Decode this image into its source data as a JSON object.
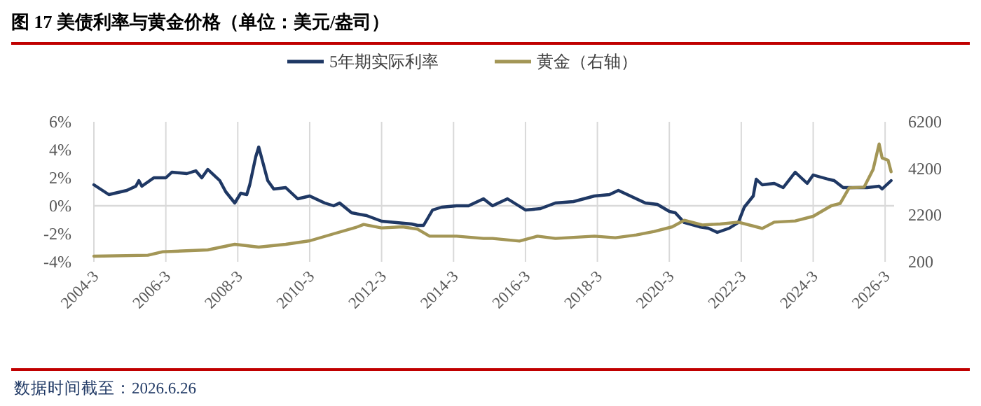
{
  "chart_data": {
    "type": "line",
    "title": "图 17 美债利率与黄金价格（单位：美元/盎司）",
    "annotations": [
      "数据时间截至：2026.6.26"
    ],
    "xlim": [
      "2004-03",
      "2026-06"
    ],
    "xticks": [
      {
        "value": "2004-03",
        "label": "2004-3"
      },
      {
        "value": "2006-03",
        "label": "2006-3"
      },
      {
        "value": "2008-03",
        "label": "2008-3"
      },
      {
        "value": "2010-03",
        "label": "2010-3"
      },
      {
        "value": "2012-03",
        "label": "2012-3"
      },
      {
        "value": "2014-03",
        "label": "2014-3"
      },
      {
        "value": "2016-03",
        "label": "2016-3"
      },
      {
        "value": "2018-03",
        "label": "2018-3"
      },
      {
        "value": "2020-03",
        "label": "2020-3"
      },
      {
        "value": "2022-03",
        "label": "2022-3"
      },
      {
        "value": "2024-03",
        "label": "2024-3"
      },
      {
        "value": "2026-03",
        "label": "2026-3"
      }
    ],
    "ylim": [
      -4,
      6
    ],
    "yticks": [
      {
        "value": -4,
        "label": "-4%"
      },
      {
        "value": -2,
        "label": "-2%"
      },
      {
        "value": 0,
        "label": "0%"
      },
      {
        "value": 2,
        "label": "2%"
      },
      {
        "value": 4,
        "label": "4%"
      },
      {
        "value": 6,
        "label": "6%"
      }
    ],
    "y2lim": [
      200,
      6200
    ],
    "y2ticks": [
      200,
      2200,
      4200,
      6200
    ],
    "grid": "x",
    "legend": "top",
    "ref_lines": [
      {
        "axis": "y",
        "value": 0,
        "color": "#d9d9d9"
      }
    ],
    "series": [
      {
        "name": "5年期实际利率",
        "color": "#1f3864",
        "x": [
          "2004-03",
          "2004-08",
          "2005-02",
          "2005-05",
          "2005-06",
          "2005-07",
          "2005-11",
          "2006-03",
          "2006-05",
          "2006-10",
          "2007-01",
          "2007-03",
          "2007-05",
          "2007-09",
          "2007-11",
          "2008-02",
          "2008-04",
          "2008-06",
          "2008-07",
          "2008-09",
          "2008-10",
          "2009-01",
          "2009-03",
          "2009-07",
          "2009-11",
          "2010-03",
          "2010-08",
          "2010-11",
          "2011-01",
          "2011-05",
          "2011-10",
          "2012-03",
          "2012-08",
          "2013-01",
          "2013-03",
          "2013-05",
          "2013-08",
          "2013-11",
          "2014-04",
          "2014-08",
          "2015-01",
          "2015-04",
          "2015-09",
          "2016-03",
          "2016-08",
          "2017-01",
          "2017-07",
          "2018-02",
          "2018-07",
          "2018-10",
          "2019-03",
          "2019-07",
          "2019-11",
          "2020-03",
          "2020-05",
          "2020-08",
          "2021-01",
          "2021-04",
          "2021-07",
          "2021-11",
          "2022-02",
          "2022-04",
          "2022-07",
          "2022-08",
          "2022-10",
          "2023-02",
          "2023-05",
          "2023-09",
          "2023-11",
          "2024-01",
          "2024-03",
          "2024-08",
          "2024-10",
          "2025-01",
          "2025-04",
          "2025-09",
          "2026-01",
          "2026-02",
          "2026-03",
          "2026-05"
        ],
        "values": [
          1.5,
          0.8,
          1.1,
          1.4,
          1.8,
          1.4,
          2.0,
          2.0,
          2.4,
          2.3,
          2.5,
          2.0,
          2.6,
          1.8,
          1.0,
          0.2,
          0.9,
          0.8,
          1.5,
          3.5,
          4.2,
          1.8,
          1.2,
          1.3,
          0.5,
          0.7,
          0.2,
          0.0,
          0.2,
          -0.5,
          -0.7,
          -1.1,
          -1.2,
          -1.3,
          -1.4,
          -1.4,
          -0.3,
          -0.1,
          0.0,
          0.0,
          0.5,
          0.0,
          0.5,
          -0.3,
          -0.2,
          0.2,
          0.3,
          0.7,
          0.8,
          1.1,
          0.6,
          0.2,
          0.1,
          -0.4,
          -0.5,
          -1.2,
          -1.5,
          -1.6,
          -1.9,
          -1.6,
          -1.2,
          -0.1,
          0.7,
          1.9,
          1.5,
          1.6,
          1.3,
          2.4,
          2.0,
          1.6,
          2.2,
          1.9,
          1.8,
          1.3,
          1.3,
          1.3,
          1.4,
          1.2,
          1.4,
          1.8
        ]
      },
      {
        "name": "黄金（右轴）",
        "color": "#a39656",
        "axis": "y2",
        "x": [
          "2004-03",
          "2005-09",
          "2006-02",
          "2007-05",
          "2008-02",
          "2008-10",
          "2009-07",
          "2010-03",
          "2010-11",
          "2011-07",
          "2011-09",
          "2012-03",
          "2012-10",
          "2013-03",
          "2013-07",
          "2014-04",
          "2015-01",
          "2015-04",
          "2016-01",
          "2016-07",
          "2017-01",
          "2018-02",
          "2018-09",
          "2019-04",
          "2019-10",
          "2020-04",
          "2020-08",
          "2021-02",
          "2021-08",
          "2022-02",
          "2022-08",
          "2022-10",
          "2023-02",
          "2023-09",
          "2024-03",
          "2024-09",
          "2024-12",
          "2025-03",
          "2025-08",
          "2025-11",
          "2026-01",
          "2026-02",
          "2026-04",
          "2026-05"
        ],
        "values": [
          440,
          480,
          630,
          710,
          950,
          830,
          950,
          1100,
          1400,
          1700,
          1800,
          1650,
          1700,
          1600,
          1300,
          1300,
          1200,
          1200,
          1090,
          1300,
          1200,
          1300,
          1230,
          1350,
          1500,
          1700,
          1980,
          1780,
          1820,
          1900,
          1700,
          1630,
          1900,
          1950,
          2150,
          2600,
          2700,
          3370,
          3400,
          4160,
          5250,
          4650,
          4550,
          4060
        ]
      }
    ]
  }
}
